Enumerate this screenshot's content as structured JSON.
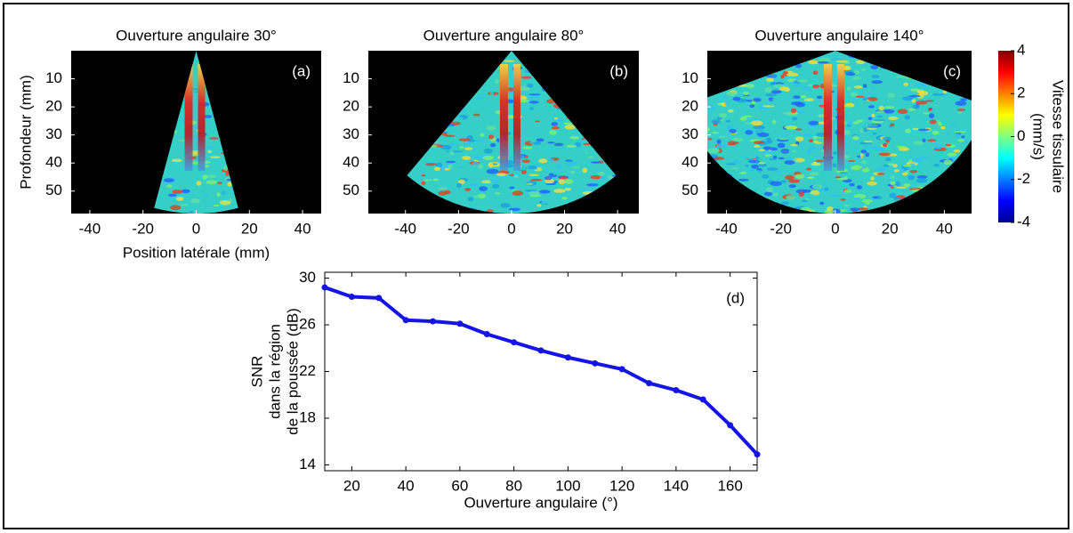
{
  "chart_data": [
    {
      "type": "image",
      "title": "Ouverture angulaire 30°",
      "label": "(a)",
      "xlabel": "Position latérale (mm)",
      "ylabel": "Profondeur (mm)",
      "xlim": [
        -47,
        47
      ],
      "xticks": [
        -40,
        -20,
        0,
        20,
        40
      ],
      "ylim": [
        0,
        58
      ],
      "yticks": [
        10,
        20,
        30,
        40,
        50
      ]
    },
    {
      "type": "image",
      "title": "Ouverture angulaire 80°",
      "label": "(b)",
      "xlim": [
        -54,
        48
      ],
      "xticks": [
        -40,
        -20,
        0,
        20,
        40
      ],
      "ylim": [
        0,
        58
      ],
      "yticks": [
        10,
        20,
        30,
        40,
        50
      ]
    },
    {
      "type": "image",
      "title": "Ouverture angulaire 140°",
      "label": "(c)",
      "xlim": [
        -47,
        50
      ],
      "xticks": [
        -40,
        -20,
        0,
        20,
        40
      ],
      "ylim": [
        0,
        58
      ],
      "yticks": [
        10,
        20,
        30,
        40,
        50
      ]
    },
    {
      "type": "colorbar",
      "label": [
        "Vitesse tissulaire",
        "(mm/s)"
      ],
      "ylim": [
        -4,
        4
      ],
      "yticks": [
        -4,
        -2,
        0,
        2,
        4
      ]
    },
    {
      "type": "line",
      "label": "(d)",
      "xlabel": "Ouverture angulaire (°)",
      "ylabel": [
        "SNR",
        "dans la région",
        "de la poussée (dB)"
      ],
      "x": [
        10,
        20,
        30,
        40,
        50,
        60,
        70,
        80,
        90,
        100,
        110,
        120,
        130,
        140,
        150,
        160,
        170
      ],
      "series": [
        {
          "color": "#1414e6",
          "values": [
            29.2,
            28.4,
            28.3,
            26.4,
            26.3,
            26.1,
            25.2,
            24.5,
            23.8,
            23.2,
            22.7,
            22.2,
            21.0,
            20.4,
            19.6,
            17.4,
            14.9
          ]
        }
      ],
      "xlim": [
        10,
        170
      ],
      "xticks": [
        20,
        40,
        60,
        80,
        100,
        120,
        140,
        160
      ],
      "ylim": [
        13.5,
        30.5
      ],
      "yticks": [
        14,
        18,
        22,
        26,
        30
      ]
    }
  ]
}
